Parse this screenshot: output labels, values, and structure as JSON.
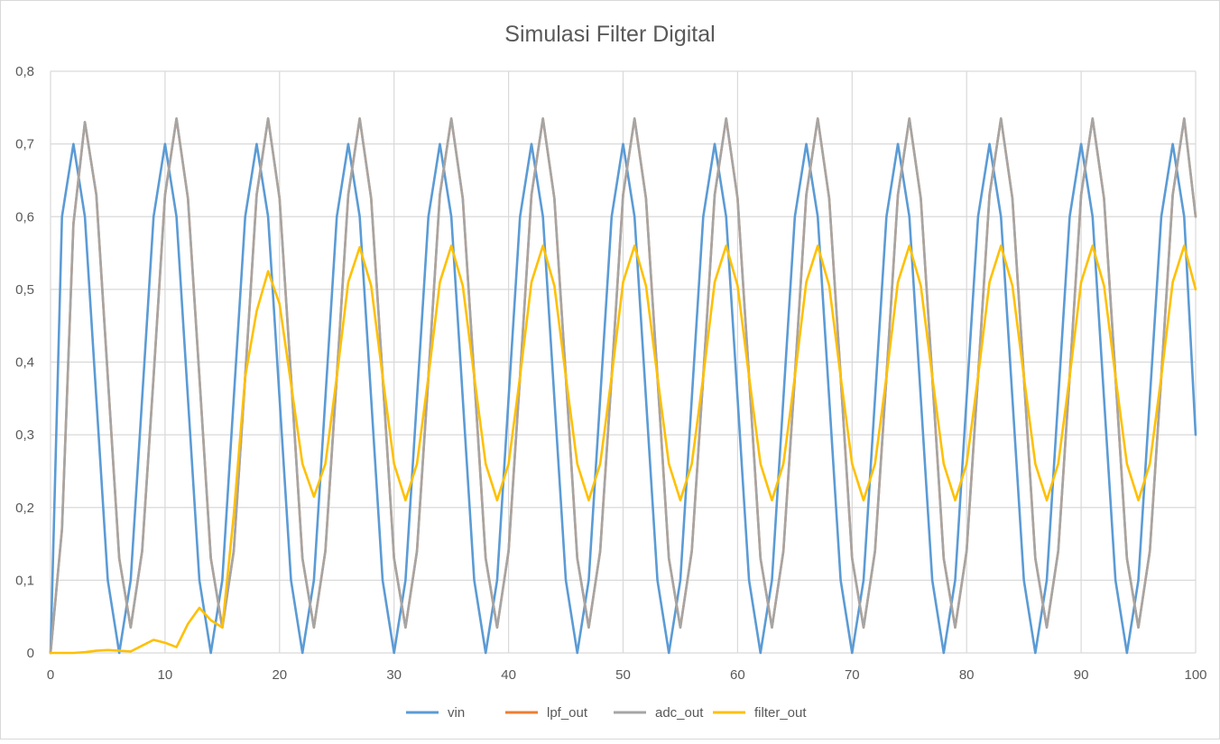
{
  "chart_data": {
    "type": "line",
    "title": "Simulasi Filter Digital",
    "xlabel": "",
    "ylabel": "",
    "xlim": [
      0,
      100
    ],
    "ylim": [
      0,
      0.8
    ],
    "x_ticks": [
      "0",
      "10",
      "20",
      "30",
      "40",
      "50",
      "60",
      "70",
      "80",
      "90",
      "100"
    ],
    "y_ticks": [
      "0",
      "0,1",
      "0,2",
      "0,3",
      "0,4",
      "0,5",
      "0,6",
      "0,7",
      "0,8"
    ],
    "grid": true,
    "legend_position": "bottom",
    "x": [
      0,
      1,
      2,
      3,
      4,
      5,
      6,
      7,
      8,
      9,
      10,
      11,
      12,
      13,
      14,
      15,
      16,
      17,
      18,
      19,
      20,
      21,
      22,
      23,
      24,
      25,
      26,
      27,
      28,
      29,
      30,
      31,
      32,
      33,
      34,
      35,
      36,
      37,
      38,
      39,
      40,
      41,
      42,
      43,
      44,
      45,
      46,
      47,
      48,
      49,
      50,
      51,
      52,
      53,
      54,
      55,
      56,
      57,
      58,
      59,
      60,
      61,
      62,
      63,
      64,
      65,
      66,
      67,
      68,
      69,
      70,
      71,
      72,
      73,
      74,
      75,
      76,
      77,
      78,
      79,
      80,
      81,
      82,
      83,
      84,
      85,
      86,
      87,
      88,
      89,
      90,
      91,
      92,
      93,
      94,
      95,
      96,
      97,
      98,
      99,
      100
    ],
    "series": [
      {
        "name": "vin",
        "color": "#5b9bd5",
        "values": [
          0,
          0.6,
          0.7,
          0.6,
          0.35,
          0.1,
          0,
          0.1,
          0.35,
          0.6,
          0.7,
          0.6,
          0.35,
          0.1,
          0,
          0.1,
          0.35,
          0.6,
          0.7,
          0.6,
          0.35,
          0.1,
          0,
          0.1,
          0.35,
          0.6,
          0.7,
          0.6,
          0.35,
          0.1,
          0,
          0.1,
          0.35,
          0.6,
          0.7,
          0.6,
          0.35,
          0.1,
          0,
          0.1,
          0.35,
          0.6,
          0.7,
          0.6,
          0.35,
          0.1,
          0,
          0.1,
          0.35,
          0.6,
          0.7,
          0.6,
          0.35,
          0.1,
          0,
          0.1,
          0.35,
          0.6,
          0.7,
          0.6,
          0.35,
          0.1,
          0,
          0.1,
          0.35,
          0.6,
          0.7,
          0.6,
          0.35,
          0.1,
          0,
          0.1,
          0.35,
          0.6,
          0.7,
          0.6,
          0.35,
          0.1,
          0,
          0.1,
          0.35,
          0.6,
          0.7,
          0.6,
          0.35,
          0.1,
          0,
          0.1,
          0.35,
          0.6,
          0.7,
          0.6,
          0.35,
          0.1,
          0,
          0.1,
          0.35,
          0.6,
          0.7,
          0.6,
          0.3
        ]
      },
      {
        "name": "lpf_out",
        "color": "#ed7d31",
        "values": [
          0,
          0.17,
          0.59,
          0.73,
          0.63,
          0.38,
          0.13,
          0.035,
          0.14,
          0.38,
          0.63,
          0.735,
          0.625,
          0.38,
          0.13,
          0.035,
          0.14,
          0.38,
          0.63,
          0.735,
          0.625,
          0.38,
          0.13,
          0.035,
          0.14,
          0.38,
          0.63,
          0.735,
          0.625,
          0.38,
          0.13,
          0.035,
          0.14,
          0.38,
          0.63,
          0.735,
          0.625,
          0.38,
          0.13,
          0.035,
          0.14,
          0.38,
          0.63,
          0.735,
          0.625,
          0.38,
          0.13,
          0.035,
          0.14,
          0.38,
          0.63,
          0.735,
          0.625,
          0.38,
          0.13,
          0.035,
          0.14,
          0.38,
          0.63,
          0.735,
          0.625,
          0.38,
          0.13,
          0.035,
          0.14,
          0.38,
          0.63,
          0.735,
          0.625,
          0.38,
          0.13,
          0.035,
          0.14,
          0.38,
          0.63,
          0.735,
          0.625,
          0.38,
          0.13,
          0.035,
          0.14,
          0.38,
          0.63,
          0.735,
          0.625,
          0.38,
          0.13,
          0.035,
          0.14,
          0.38,
          0.63,
          0.735,
          0.625,
          0.38,
          0.13,
          0.035,
          0.14,
          0.38,
          0.63,
          0.735,
          0.6
        ]
      },
      {
        "name": "adc_out",
        "color": "#a5a5a5",
        "values": [
          0,
          0.17,
          0.59,
          0.73,
          0.63,
          0.38,
          0.13,
          0.035,
          0.14,
          0.38,
          0.63,
          0.735,
          0.625,
          0.38,
          0.13,
          0.035,
          0.14,
          0.38,
          0.63,
          0.735,
          0.625,
          0.38,
          0.13,
          0.035,
          0.14,
          0.38,
          0.63,
          0.735,
          0.625,
          0.38,
          0.13,
          0.035,
          0.14,
          0.38,
          0.63,
          0.735,
          0.625,
          0.38,
          0.13,
          0.035,
          0.14,
          0.38,
          0.63,
          0.735,
          0.625,
          0.38,
          0.13,
          0.035,
          0.14,
          0.38,
          0.63,
          0.735,
          0.625,
          0.38,
          0.13,
          0.035,
          0.14,
          0.38,
          0.63,
          0.735,
          0.625,
          0.38,
          0.13,
          0.035,
          0.14,
          0.38,
          0.63,
          0.735,
          0.625,
          0.38,
          0.13,
          0.035,
          0.14,
          0.38,
          0.63,
          0.735,
          0.625,
          0.38,
          0.13,
          0.035,
          0.14,
          0.38,
          0.63,
          0.735,
          0.625,
          0.38,
          0.13,
          0.035,
          0.14,
          0.38,
          0.63,
          0.735,
          0.625,
          0.38,
          0.13,
          0.035,
          0.14,
          0.38,
          0.63,
          0.735,
          0.6
        ]
      },
      {
        "name": "filter_out",
        "color": "#ffc000",
        "values": [
          0,
          0,
          0,
          0.001,
          0.003,
          0.004,
          0.003,
          0.002,
          0.01,
          0.018,
          0.014,
          0.008,
          0.04,
          0.062,
          0.045,
          0.035,
          0.19,
          0.38,
          0.47,
          0.525,
          0.48,
          0.37,
          0.26,
          0.215,
          0.26,
          0.38,
          0.51,
          0.558,
          0.505,
          0.38,
          0.26,
          0.21,
          0.26,
          0.38,
          0.51,
          0.56,
          0.505,
          0.38,
          0.26,
          0.21,
          0.26,
          0.38,
          0.51,
          0.56,
          0.505,
          0.38,
          0.26,
          0.21,
          0.26,
          0.38,
          0.51,
          0.56,
          0.505,
          0.38,
          0.26,
          0.21,
          0.26,
          0.38,
          0.51,
          0.56,
          0.505,
          0.38,
          0.26,
          0.21,
          0.26,
          0.38,
          0.51,
          0.56,
          0.505,
          0.38,
          0.26,
          0.21,
          0.26,
          0.38,
          0.51,
          0.56,
          0.505,
          0.38,
          0.26,
          0.21,
          0.26,
          0.38,
          0.51,
          0.56,
          0.505,
          0.38,
          0.26,
          0.21,
          0.26,
          0.38,
          0.51,
          0.56,
          0.505,
          0.38,
          0.26,
          0.21,
          0.26,
          0.38,
          0.51,
          0.56,
          0.5
        ]
      }
    ]
  }
}
